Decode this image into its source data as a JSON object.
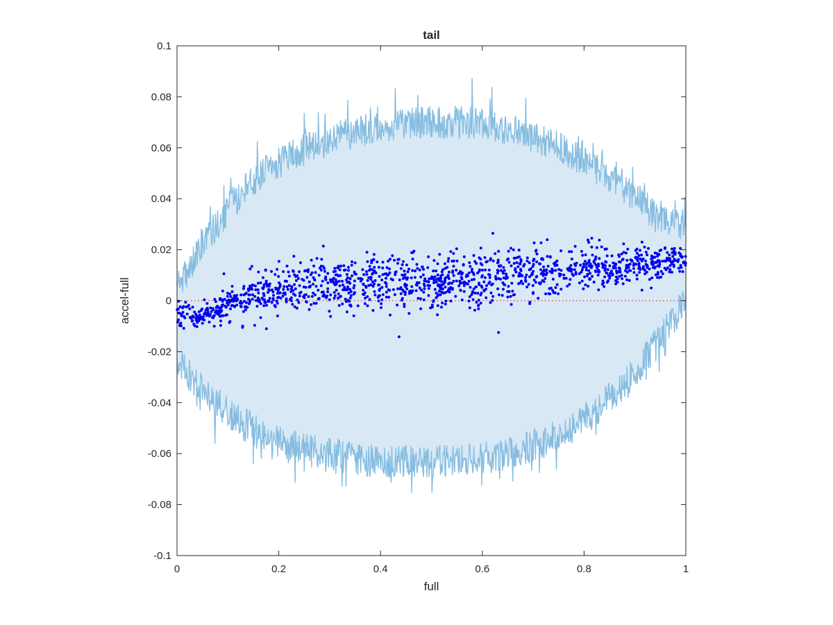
{
  "chart_data": {
    "type": "scatter",
    "title": "tail",
    "xlabel": "full",
    "ylabel": "accel-full",
    "xlim": [
      0,
      1
    ],
    "ylim": [
      -0.1,
      0.1
    ],
    "x_ticks": [
      "0",
      "0.2",
      "0.4",
      "0.6",
      "0.8",
      "1"
    ],
    "x_tick_values": [
      0,
      0.2,
      0.4,
      0.6,
      0.8,
      1
    ],
    "y_ticks": [
      "0.1",
      "0.08",
      "0.06",
      "0.04",
      "0.02",
      "0",
      "-0.02",
      "-0.04",
      "-0.06",
      "-0.08",
      "-0.1"
    ],
    "y_tick_values": [
      0.1,
      0.08,
      0.06,
      0.04,
      0.02,
      0,
      -0.02,
      -0.04,
      -0.06,
      -0.08,
      -0.1
    ],
    "grid": false,
    "reference_line": {
      "y": 0,
      "style": "dotted",
      "color": "#e8312b"
    },
    "band": {
      "color_line": "#86bde0",
      "color_fill": "#d8e9f5",
      "x": [
        0,
        0.05,
        0.1,
        0.15,
        0.2,
        0.25,
        0.3,
        0.35,
        0.4,
        0.45,
        0.5,
        0.55,
        0.6,
        0.65,
        0.7,
        0.75,
        0.8,
        0.85,
        0.9,
        0.95,
        1.0
      ],
      "upper": [
        0.005,
        0.022,
        0.036,
        0.047,
        0.054,
        0.059,
        0.063,
        0.066,
        0.068,
        0.069,
        0.07,
        0.07,
        0.069,
        0.067,
        0.064,
        0.06,
        0.055,
        0.049,
        0.041,
        0.031,
        0.03
      ],
      "lower": [
        -0.024,
        -0.035,
        -0.044,
        -0.05,
        -0.055,
        -0.058,
        -0.06,
        -0.062,
        -0.063,
        -0.063,
        -0.063,
        -0.063,
        -0.062,
        -0.06,
        -0.057,
        -0.053,
        -0.047,
        -0.038,
        -0.028,
        -0.015,
        0.0
      ]
    },
    "series": [
      {
        "color": "#0000ee",
        "trend_x": [
          0,
          0.05,
          0.1,
          0.15,
          0.2,
          0.3,
          0.4,
          0.5,
          0.6,
          0.7,
          0.8,
          0.9,
          1.0
        ],
        "trend_y": [
          -0.006,
          -0.007,
          -0.001,
          0.002,
          0.004,
          0.006,
          0.007,
          0.008,
          0.009,
          0.011,
          0.012,
          0.014,
          0.016
        ],
        "spread_x": [
          0,
          0.05,
          0.1,
          0.2,
          0.3,
          0.4,
          0.5,
          0.6,
          0.7,
          0.8,
          0.9,
          0.95,
          1.0
        ],
        "spread_y": [
          0.0025,
          0.0025,
          0.004,
          0.0045,
          0.0055,
          0.0055,
          0.0055,
          0.0055,
          0.005,
          0.0045,
          0.004,
          0.003,
          0.0025
        ],
        "count": 1400
      }
    ]
  }
}
